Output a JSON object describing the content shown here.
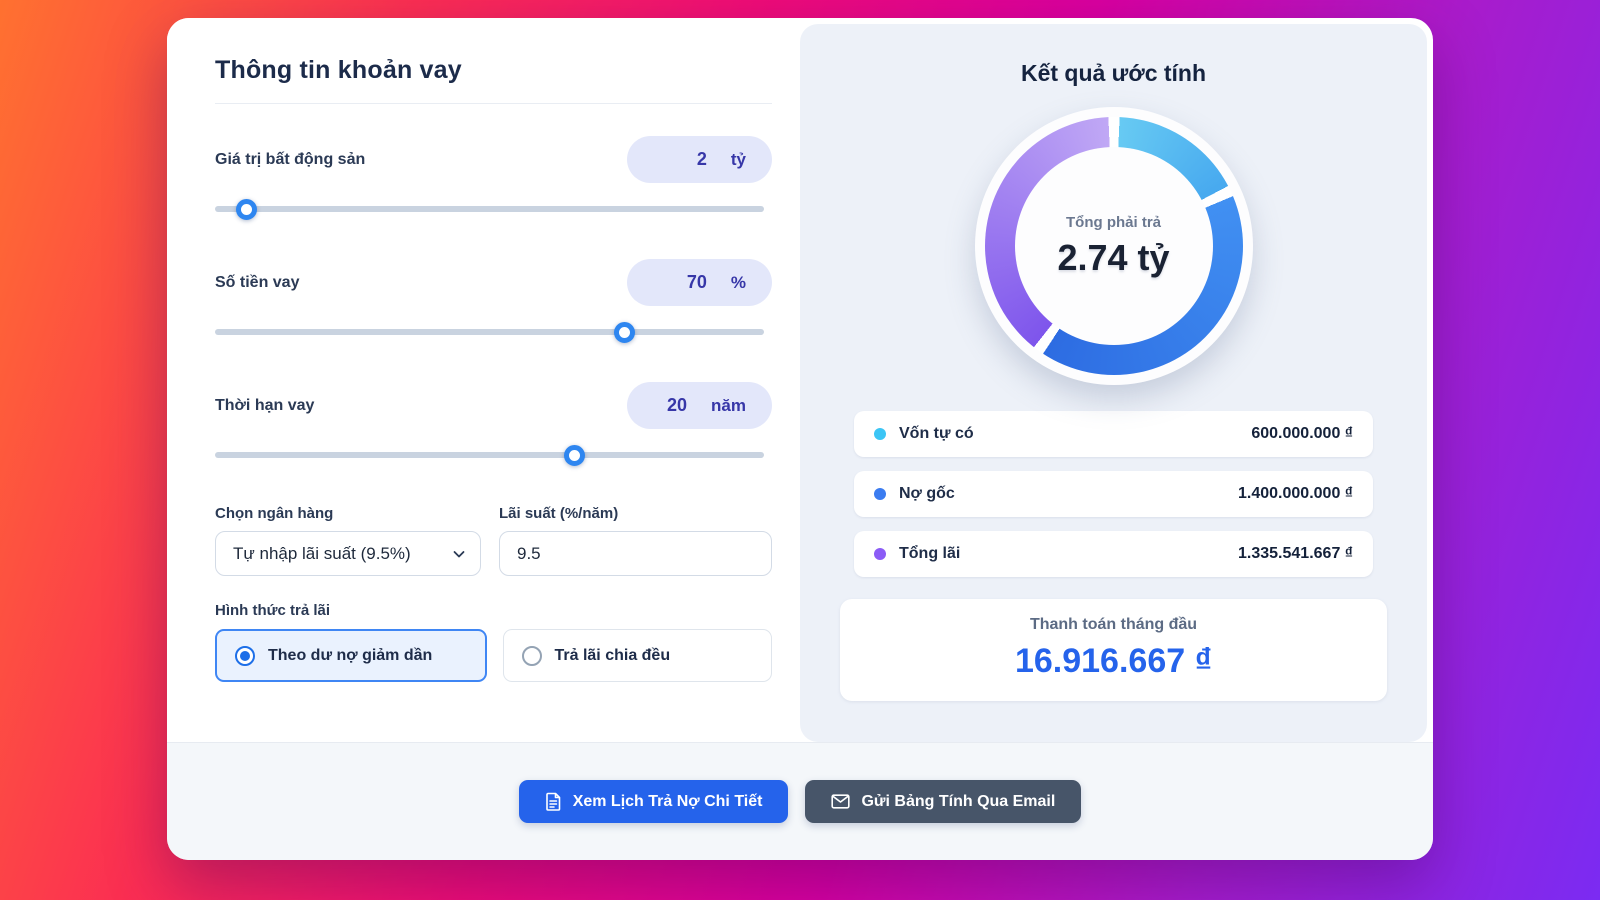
{
  "theme": {
    "accent_blue": "#2563eb",
    "pill_text": "#3737a8",
    "panel_bg": "#edf1f8",
    "gradient": [
      "#ff7130",
      "#fb2e52",
      "#ef0c77",
      "#d9009f",
      "#7b2bf2"
    ]
  },
  "left_panel": {
    "title": "Thông tin khoản vay",
    "sliders": [
      {
        "label": "Giá trị bất động sản",
        "value": "2",
        "unit": "tỷ",
        "percent": 5.6
      },
      {
        "label": "Số tiền vay",
        "value": "70",
        "unit": "%",
        "percent": 73.5
      },
      {
        "label": "Thời hạn vay",
        "value": "20",
        "unit": "năm",
        "percent": 64.5
      }
    ],
    "bank": {
      "label": "Chọn ngân hàng",
      "selected": "Tự nhập lãi suất (9.5%)"
    },
    "rate": {
      "label": "Lãi suất (%/năm)",
      "value": "9.5"
    },
    "method": {
      "label": "Hình thức trả lãi",
      "options": [
        {
          "label": "Theo dư nợ giảm dần",
          "selected": true
        },
        {
          "label": "Trả lãi chia đều",
          "selected": false
        }
      ]
    }
  },
  "results": {
    "title": "Kết quả ước tính",
    "donut_center": {
      "label": "Tổng phải trả",
      "value": "2.74 tỷ"
    },
    "legend": [
      {
        "label": "Vốn tự có",
        "value": "600.000.000 ₫",
        "color": "#3cc5f5"
      },
      {
        "label": "Nợ gốc",
        "value": "1.400.000.000 ₫",
        "color": "#3b7cf0"
      },
      {
        "label": "Tổng lãi",
        "value": "1.335.541.667 ₫",
        "color": "#8b5cf6"
      }
    ],
    "monthly": {
      "label": "Thanh toán tháng đầu",
      "value": "16.916.667 ₫"
    }
  },
  "footer": {
    "buttons": [
      {
        "label": "Xem Lịch Trả Nợ Chi Tiết"
      },
      {
        "label": "Gửi Bảng Tính Qua Email"
      }
    ]
  },
  "chart_data": {
    "type": "pie",
    "title": "Kết quả ước tính",
    "center_label": "Tổng phải trả",
    "center_value": "2.74 tỷ",
    "gap_degrees": 5,
    "segments": [
      {
        "label": "Vốn tự có",
        "value": 600000000,
        "display": "600.000.000 ₫",
        "color_start": "#67caf3",
        "color_end": "#47a9ef"
      },
      {
        "label": "Nợ gốc",
        "value": 1400000000,
        "display": "1.400.000.000 ₫",
        "color_start": "#4190f2",
        "color_end": "#2d6ce2"
      },
      {
        "label": "Tổng lãi",
        "value": 1335541667,
        "display": "1.335.541.667 ₫",
        "color_start": "#7e55ec",
        "color_end": "#c0a8f5"
      }
    ]
  }
}
